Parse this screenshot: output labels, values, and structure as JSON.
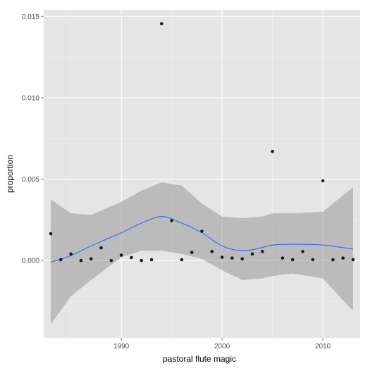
{
  "chart_data": {
    "type": "scatter",
    "title": "",
    "xlabel": "pastoral flute magic",
    "ylabel": "proportion",
    "xlim": [
      1982.3,
      2013.7
    ],
    "ylim": [
      -0.00475,
      0.0154
    ],
    "x_ticks": [
      1990,
      2000,
      2010
    ],
    "x_tick_labels": [
      "1990",
      "2000",
      "2010"
    ],
    "y_ticks": [
      0,
      0.005,
      0.01,
      0.015
    ],
    "y_tick_labels": [
      "0.000",
      "0.005",
      "0.010",
      "0.015"
    ],
    "grid": true,
    "panel_background": "#e5e5e5",
    "grid_color": "#ffffff",
    "point_color": "#1a1a1a",
    "smooth_color": "#3366ff",
    "ribbon_color": "#999999",
    "points": [
      {
        "x": 1983,
        "y": 0.00165
      },
      {
        "x": 1984,
        "y": 5e-05
      },
      {
        "x": 1985,
        "y": 0.0004
      },
      {
        "x": 1986,
        "y": 0.0
      },
      {
        "x": 1987,
        "y": 0.0001
      },
      {
        "x": 1988,
        "y": 0.00078
      },
      {
        "x": 1989,
        "y": 0.0
      },
      {
        "x": 1990,
        "y": 0.00033
      },
      {
        "x": 1991,
        "y": 0.00018
      },
      {
        "x": 1992,
        "y": 0.0
      },
      {
        "x": 1993,
        "y": 5e-05
      },
      {
        "x": 1994,
        "y": 0.01455
      },
      {
        "x": 1995,
        "y": 0.00245
      },
      {
        "x": 1996,
        "y": 5e-05
      },
      {
        "x": 1997,
        "y": 0.0005
      },
      {
        "x": 1998,
        "y": 0.0018
      },
      {
        "x": 1999,
        "y": 0.00055
      },
      {
        "x": 2000,
        "y": 0.0002
      },
      {
        "x": 2001,
        "y": 0.00015
      },
      {
        "x": 2002,
        "y": 0.0001
      },
      {
        "x": 2003,
        "y": 0.0004
      },
      {
        "x": 2004,
        "y": 0.00055
      },
      {
        "x": 2005,
        "y": 0.0067
      },
      {
        "x": 2006,
        "y": 0.00015
      },
      {
        "x": 2007,
        "y": 5e-05
      },
      {
        "x": 2008,
        "y": 0.00055
      },
      {
        "x": 2009,
        "y": 5e-05
      },
      {
        "x": 2010,
        "y": 0.0049
      },
      {
        "x": 2011,
        "y": 5e-05
      },
      {
        "x": 2012,
        "y": 0.00015
      },
      {
        "x": 2013,
        "y": 5e-05
      }
    ],
    "smooth": {
      "x": [
        1983,
        1985,
        1987,
        1990,
        1992,
        1994,
        1996,
        1998,
        2000,
        2002,
        2004,
        2005,
        2007,
        2010,
        2013
      ],
      "y": [
        -0.0001,
        0.0003,
        0.0009,
        0.0017,
        0.0023,
        0.0027,
        0.0023,
        0.0017,
        0.0009,
        0.0006,
        0.0008,
        0.00095,
        0.001,
        0.00095,
        0.0007
      ],
      "lower": [
        -0.0039,
        -0.0022,
        -0.0012,
        0.0002,
        0.0006,
        0.0006,
        0.0004,
        0.0001,
        -0.0006,
        -0.0012,
        -0.0011,
        -0.00095,
        -0.0008,
        -0.0011,
        -0.0031
      ],
      "upper": [
        0.00375,
        0.0029,
        0.0028,
        0.0036,
        0.0043,
        0.0048,
        0.0046,
        0.0035,
        0.0027,
        0.0026,
        0.0027,
        0.0029,
        0.0029,
        0.003,
        0.0045
      ]
    }
  }
}
